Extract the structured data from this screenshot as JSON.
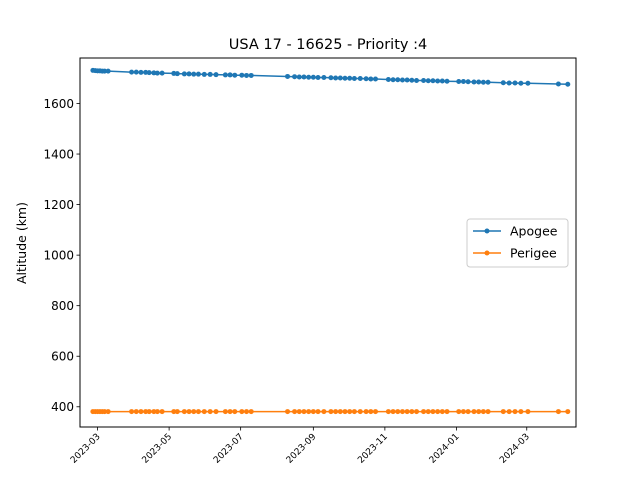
{
  "chart_data": {
    "type": "line",
    "title": "USA 17 - 16625 - Priority :4",
    "xlabel": "",
    "ylabel": "Altitude (km)",
    "x_range": [
      "2023-02-14",
      "2024-04-12"
    ],
    "ylim": [
      320,
      1780
    ],
    "y_ticks": [
      400,
      600,
      800,
      1000,
      1200,
      1400,
      1600
    ],
    "x_ticks": [
      "2023-03",
      "2023-05",
      "2023-07",
      "2023-09",
      "2023-11",
      "2024-01",
      "2024-03"
    ],
    "grid": false,
    "legend_position": "center-right",
    "series": [
      {
        "name": "Apogee",
        "color": "#1f77b4",
        "x": [
          "2023-02-25",
          "2023-02-27",
          "2023-03-01",
          "2023-03-03",
          "2023-03-05",
          "2023-03-07",
          "2023-03-10",
          "2023-03-30",
          "2023-04-03",
          "2023-04-07",
          "2023-04-11",
          "2023-04-14",
          "2023-04-18",
          "2023-04-21",
          "2023-04-25",
          "2023-05-05",
          "2023-05-08",
          "2023-05-14",
          "2023-05-18",
          "2023-05-22",
          "2023-05-26",
          "2023-05-31",
          "2023-06-05",
          "2023-06-10",
          "2023-06-18",
          "2023-06-22",
          "2023-06-26",
          "2023-07-02",
          "2023-07-06",
          "2023-07-10",
          "2023-08-10",
          "2023-08-16",
          "2023-08-20",
          "2023-08-24",
          "2023-08-28",
          "2023-09-01",
          "2023-09-05",
          "2023-09-10",
          "2023-09-16",
          "2023-09-20",
          "2023-09-24",
          "2023-09-28",
          "2023-10-02",
          "2023-10-06",
          "2023-10-11",
          "2023-10-16",
          "2023-10-20",
          "2023-10-24",
          "2023-11-04",
          "2023-11-08",
          "2023-11-12",
          "2023-11-16",
          "2023-11-20",
          "2023-11-24",
          "2023-11-28",
          "2023-12-04",
          "2023-12-08",
          "2023-12-12",
          "2023-12-16",
          "2023-12-20",
          "2023-12-24",
          "2024-01-03",
          "2024-01-07",
          "2024-01-11",
          "2024-01-16",
          "2024-01-20",
          "2024-01-24",
          "2024-01-28",
          "2024-02-10",
          "2024-02-15",
          "2024-02-20",
          "2024-02-25",
          "2024-03-02",
          "2024-03-28",
          "2024-04-05"
        ],
        "y": [
          1731,
          1730,
          1729,
          1729,
          1728,
          1728,
          1728,
          1724,
          1724,
          1723,
          1723,
          1722,
          1721,
          1720,
          1720,
          1719,
          1718,
          1717,
          1717,
          1716,
          1716,
          1715,
          1715,
          1714,
          1713,
          1713,
          1712,
          1712,
          1711,
          1711,
          1707,
          1706,
          1705,
          1705,
          1704,
          1704,
          1703,
          1703,
          1702,
          1701,
          1701,
          1700,
          1700,
          1699,
          1699,
          1698,
          1697,
          1697,
          1695,
          1694,
          1694,
          1693,
          1693,
          1692,
          1691,
          1691,
          1690,
          1690,
          1689,
          1689,
          1688,
          1687,
          1687,
          1686,
          1685,
          1685,
          1684,
          1684,
          1682,
          1681,
          1681,
          1680,
          1680,
          1677,
          1676
        ]
      },
      {
        "name": "Perigee",
        "color": "#ff7f0e",
        "x": [
          "2023-02-25",
          "2023-02-27",
          "2023-03-01",
          "2023-03-03",
          "2023-03-05",
          "2023-03-07",
          "2023-03-10",
          "2023-03-30",
          "2023-04-03",
          "2023-04-07",
          "2023-04-11",
          "2023-04-14",
          "2023-04-18",
          "2023-04-21",
          "2023-04-25",
          "2023-05-05",
          "2023-05-08",
          "2023-05-14",
          "2023-05-18",
          "2023-05-22",
          "2023-05-26",
          "2023-05-31",
          "2023-06-05",
          "2023-06-10",
          "2023-06-18",
          "2023-06-22",
          "2023-06-26",
          "2023-07-02",
          "2023-07-06",
          "2023-07-10",
          "2023-08-10",
          "2023-08-16",
          "2023-08-20",
          "2023-08-24",
          "2023-08-28",
          "2023-09-01",
          "2023-09-05",
          "2023-09-10",
          "2023-09-16",
          "2023-09-20",
          "2023-09-24",
          "2023-09-28",
          "2023-10-02",
          "2023-10-06",
          "2023-10-11",
          "2023-10-16",
          "2023-10-20",
          "2023-10-24",
          "2023-11-04",
          "2023-11-08",
          "2023-11-12",
          "2023-11-16",
          "2023-11-20",
          "2023-11-24",
          "2023-11-28",
          "2023-12-04",
          "2023-12-08",
          "2023-12-12",
          "2023-12-16",
          "2023-12-20",
          "2023-12-24",
          "2024-01-03",
          "2024-01-07",
          "2024-01-11",
          "2024-01-16",
          "2024-01-20",
          "2024-01-24",
          "2024-01-28",
          "2024-02-10",
          "2024-02-15",
          "2024-02-20",
          "2024-02-25",
          "2024-03-02",
          "2024-03-28",
          "2024-04-05"
        ],
        "y": [
          381,
          381,
          381,
          381,
          381,
          381,
          381,
          381,
          381,
          381,
          381,
          381,
          381,
          381,
          381,
          381,
          381,
          381,
          381,
          381,
          381,
          381,
          381,
          381,
          381,
          381,
          381,
          381,
          381,
          381,
          381,
          381,
          381,
          381,
          381,
          381,
          381,
          381,
          381,
          381,
          381,
          381,
          381,
          381,
          381,
          381,
          381,
          381,
          381,
          381,
          381,
          381,
          381,
          381,
          381,
          381,
          381,
          381,
          381,
          381,
          381,
          381,
          381,
          381,
          381,
          381,
          381,
          381,
          381,
          381,
          381,
          381,
          381,
          381,
          381
        ]
      }
    ]
  }
}
